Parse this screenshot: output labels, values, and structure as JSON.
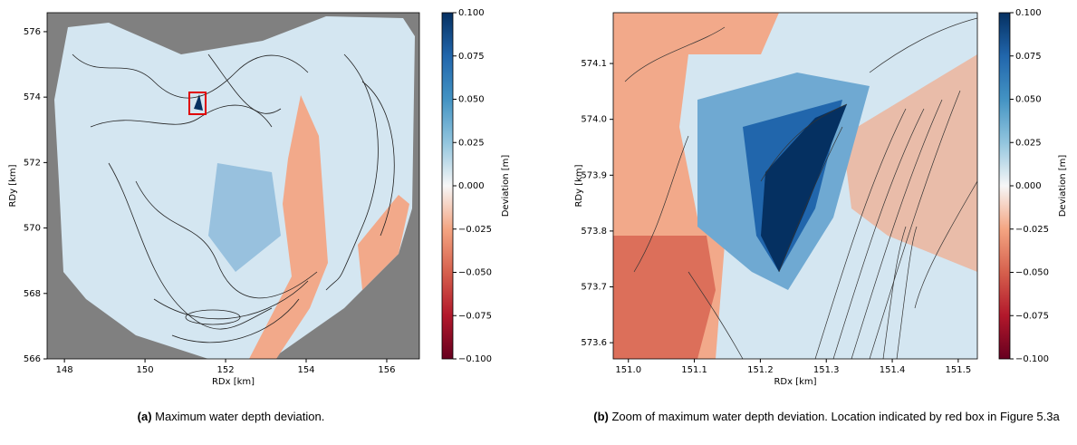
{
  "chart_data": [
    {
      "type": "heatmap",
      "xlabel": "RDx [km]",
      "ylabel": "RDy [km]",
      "xlim": [
        147.57,
        156.81
      ],
      "ylim": [
        566,
        576.58
      ],
      "xticks": [
        148,
        150,
        152,
        154,
        156
      ],
      "yticks": [
        566,
        568,
        570,
        572,
        574,
        576
      ],
      "colorbar": {
        "label": "Deviation [m]",
        "lim": [
          -0.1,
          0.1
        ],
        "ticks": [
          {
            "value": -0.1,
            "label": "−0.100"
          },
          {
            "value": -0.075,
            "label": "−0.075"
          },
          {
            "value": -0.05,
            "label": "−0.050"
          },
          {
            "value": -0.025,
            "label": "−0.025"
          },
          {
            "value": 0,
            "label": "0.000"
          },
          {
            "value": 0.025,
            "label": "0.025"
          },
          {
            "value": 0.05,
            "label": "0.050"
          },
          {
            "value": 0.075,
            "label": "0.075"
          },
          {
            "value": 0.1,
            "label": "0.100"
          }
        ]
      }
    },
    {
      "type": "heatmap",
      "xlabel": "RDx [km]",
      "ylabel": "RDy [km]",
      "xlim": [
        150.977,
        151.529
      ],
      "ylim": [
        573.571,
        574.191
      ],
      "xticks": [
        {
          "value": 151.0,
          "label": "151.0"
        },
        151.1,
        151.2,
        151.3,
        151.4,
        151.5
      ],
      "yticks": [
        573.6,
        573.7,
        573.8,
        573.9,
        {
          "value": 574.0,
          "label": "574.0"
        },
        574.1
      ],
      "colorbar": {
        "label": "Deviation [m]",
        "lim": [
          -0.1,
          0.1
        ],
        "ticks": [
          {
            "value": -0.1,
            "label": "−0.100"
          },
          {
            "value": -0.075,
            "label": "−0.075"
          },
          {
            "value": -0.05,
            "label": "−0.050"
          },
          {
            "value": -0.025,
            "label": "−0.025"
          },
          {
            "value": 0,
            "label": "0.000"
          },
          {
            "value": 0.025,
            "label": "0.025"
          },
          {
            "value": 0.05,
            "label": "0.050"
          },
          {
            "value": 0.075,
            "label": "0.075"
          },
          {
            "value": 0.1,
            "label": "0.100"
          }
        ]
      }
    }
  ],
  "captions": [
    {
      "label": "(a)",
      "text": "Maximum water depth deviation."
    },
    {
      "label": "(b)",
      "text": "Zoom of maximum water depth deviation. Location indicated by red box in Figure 5.3a"
    }
  ]
}
